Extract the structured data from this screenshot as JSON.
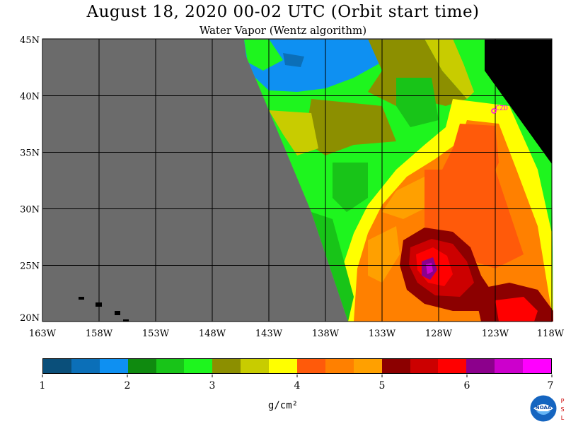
{
  "header": {
    "title": "August 18, 2020  00-02 UTC  (Orbit start time)",
    "subtitle": "Water Vapor (Wentz algorithm)"
  },
  "map": {
    "lat_labels": [
      "45N",
      "40N",
      "35N",
      "30N",
      "25N",
      "20N"
    ],
    "lon_labels": [
      "163W",
      "158W",
      "153W",
      "148W",
      "143W",
      "138W",
      "133W",
      "128W",
      "123W",
      "118W"
    ],
    "station_label": "CZD",
    "colors": {
      "missing": "#6b6b6b",
      "land": "#000000",
      "grid": "#000000",
      "station": "#ff00ff"
    }
  },
  "colorbar": {
    "tick_labels": [
      "1",
      "2",
      "3",
      "4",
      "5",
      "6",
      "7"
    ],
    "units": "g/cm²",
    "colors": [
      "#0a4f7a",
      "#0b6fb8",
      "#0e90f2",
      "#0f8a0f",
      "#18c418",
      "#1ef51e",
      "#8c8f00",
      "#c8cc00",
      "#ffff00",
      "#ff5a0a",
      "#ff8000",
      "#ffa000",
      "#8c0000",
      "#cc0000",
      "#ff0000",
      "#8c008c",
      "#cc00cc",
      "#ff00ff"
    ]
  },
  "logo": {
    "name": "NOAA",
    "side_text": "PSL"
  }
}
